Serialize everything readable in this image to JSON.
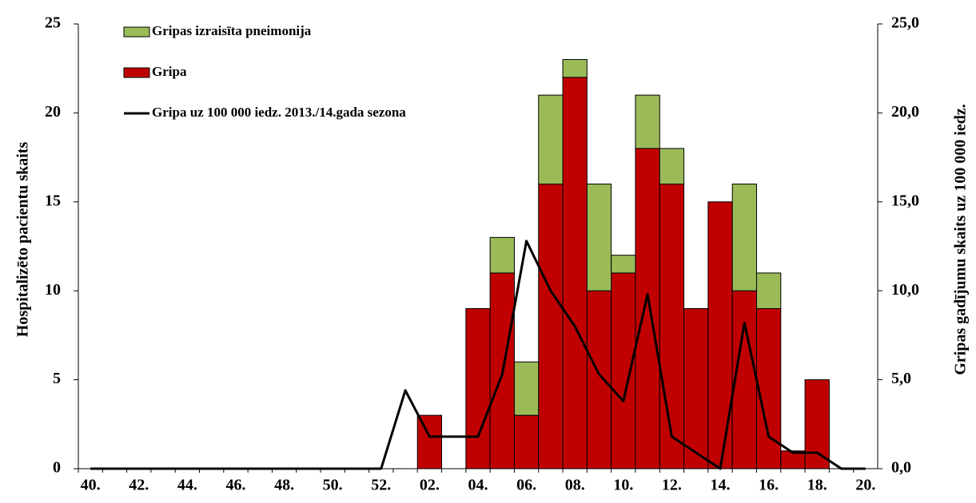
{
  "chart_data": {
    "type": "bar",
    "categories": [
      "40.",
      null,
      "42.",
      null,
      "44.",
      null,
      "46.",
      null,
      "48.",
      null,
      "50.",
      null,
      "52.",
      null,
      "02.",
      null,
      "04.",
      null,
      "06.",
      null,
      "08.",
      null,
      "10.",
      null,
      "12.",
      null,
      "14.",
      null,
      "16.",
      null,
      "18.",
      null,
      "20."
    ],
    "series": [
      {
        "name": "Gripa",
        "type": "bar",
        "color": "#c00000",
        "values": [
          0,
          0,
          0,
          0,
          0,
          0,
          0,
          0,
          0,
          0,
          0,
          0,
          0,
          0,
          3,
          0,
          9,
          11,
          3,
          16,
          22,
          10,
          11,
          18,
          16,
          9,
          15,
          10,
          9,
          1,
          5,
          0,
          0
        ]
      },
      {
        "name": "Gripas izraisīta  pneimonija",
        "type": "bar",
        "color": "#9bbb59",
        "values": [
          0,
          0,
          0,
          0,
          0,
          0,
          0,
          0,
          0,
          0,
          0,
          0,
          0,
          0,
          0,
          0,
          0,
          2,
          3,
          5,
          1,
          6,
          1,
          3,
          2,
          0,
          0,
          6,
          2,
          0,
          0,
          0,
          0
        ]
      },
      {
        "name": "Gripa uz 100 000 iedz. 2013./14.gada sezona",
        "type": "line",
        "color": "#000000",
        "axis": "y2",
        "values": [
          0,
          0,
          0,
          0,
          0,
          0,
          0,
          0,
          0,
          0,
          0,
          0,
          0,
          4.4,
          1.8,
          1.8,
          1.8,
          5.3,
          12.8,
          10.0,
          8.0,
          5.3,
          3.8,
          9.8,
          1.8,
          0.9,
          0,
          8.2,
          1.8,
          0.9,
          0.9,
          0,
          0
        ]
      }
    ],
    "stacked": true,
    "y_label": "Hospitalizēto pacientu skaits",
    "y2_label": "Gripas gadījumu skaits uz 100 000 iedz.",
    "ylim": [
      0,
      25
    ],
    "yticks": [
      0,
      5,
      10,
      15,
      20,
      25
    ],
    "y2lim": [
      0,
      25
    ],
    "y2ticks": [
      {
        "value": 0,
        "label": "0,0"
      },
      {
        "value": 5,
        "label": "5,0"
      },
      {
        "value": 10,
        "label": "10,0"
      },
      {
        "value": 15,
        "label": "15,0"
      },
      {
        "value": 20,
        "label": "20,0"
      },
      {
        "value": 25,
        "label": "25,0"
      }
    ],
    "legend": "top-left"
  }
}
